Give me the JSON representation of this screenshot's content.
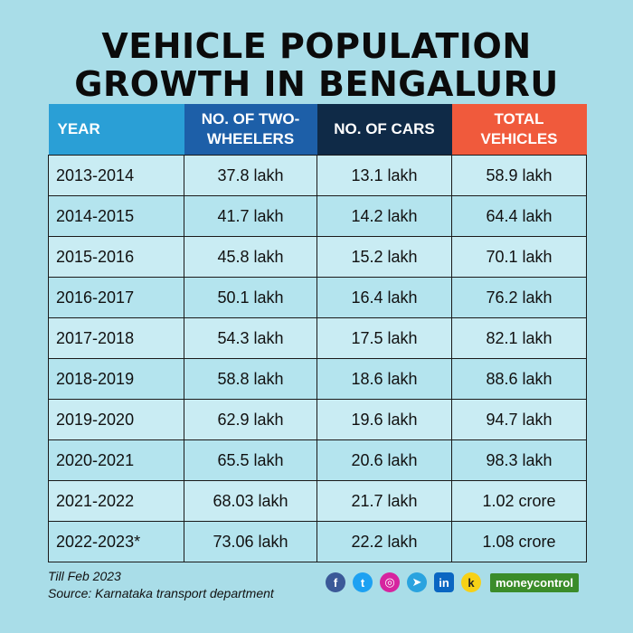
{
  "title": {
    "line1": "VEHICLE POPULATION",
    "line2": "GROWTH IN BENGALURU"
  },
  "table": {
    "headers": {
      "year": "YEAR",
      "two_wheelers_1": "NO. OF TWO-",
      "two_wheelers_2": "WHEELERS",
      "cars": "NO. OF CARS",
      "total_1": "TOTAL",
      "total_2": "VEHICLES"
    },
    "rows": [
      {
        "year": "2013-2014",
        "two": "37.8 lakh",
        "cars": "13.1 lakh",
        "total": "58.9 lakh"
      },
      {
        "year": "2014-2015",
        "two": "41.7 lakh",
        "cars": "14.2 lakh",
        "total": "64.4 lakh"
      },
      {
        "year": "2015-2016",
        "two": "45.8 lakh",
        "cars": "15.2 lakh",
        "total": "70.1 lakh"
      },
      {
        "year": "2016-2017",
        "two": "50.1 lakh",
        "cars": "16.4 lakh",
        "total": "76.2 lakh"
      },
      {
        "year": "2017-2018",
        "two": "54.3 lakh",
        "cars": "17.5 lakh",
        "total": "82.1 lakh"
      },
      {
        "year": "2018-2019",
        "two": "58.8 lakh",
        "cars": "18.6 lakh",
        "total": "88.6 lakh"
      },
      {
        "year": "2019-2020",
        "two": "62.9 lakh",
        "cars": "19.6 lakh",
        "total": "94.7 lakh"
      },
      {
        "year": "2020-2021",
        "two": "65.5 lakh",
        "cars": "20.6 lakh",
        "total": "98.3 lakh"
      },
      {
        "year": "2021-2022",
        "two": "68.03 lakh",
        "cars": "21.7 lakh",
        "total": "1.02 crore"
      },
      {
        "year": "2022-2023*",
        "two": "73.06 lakh",
        "cars": "22.2 lakh",
        "total": "1.08 crore"
      }
    ]
  },
  "footer": {
    "note": "Till Feb 2023",
    "source": "Source: Karnataka transport department"
  },
  "social": {
    "facebook": "f",
    "twitter": "t",
    "instagram": "◎",
    "telegram": "➤",
    "linkedin": "in",
    "koo": "k",
    "brand": "moneycontrol"
  }
}
